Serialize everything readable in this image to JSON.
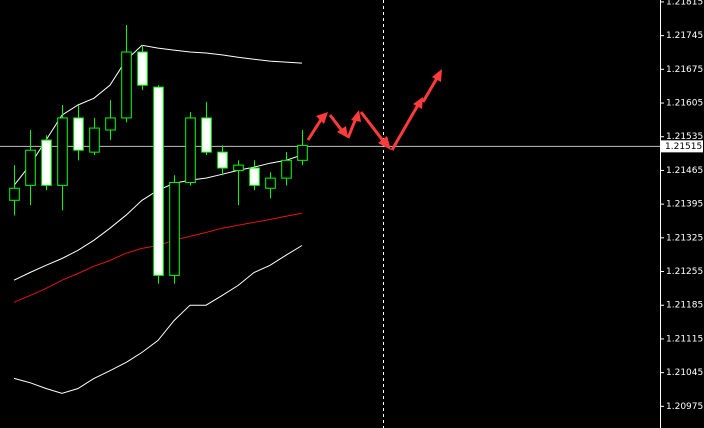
{
  "chart_data": {
    "type": "candlestick",
    "categories": [
      null,
      null,
      null,
      null,
      null,
      null,
      null,
      null,
      null,
      null,
      null,
      null,
      null,
      null,
      null,
      null,
      null,
      null,
      null
    ],
    "candles": {
      "border_color": "#00ff00",
      "up_color": "#000000",
      "down_color": "#ffffff",
      "open": [
        1.21403,
        1.21434,
        1.21528,
        1.21434,
        1.21574,
        1.21503,
        1.21549,
        1.21574,
        1.21711,
        1.21638,
        1.21247,
        1.2144,
        1.21574,
        1.21503,
        1.21465,
        1.2147,
        1.21428,
        1.21449,
        1.21486
      ],
      "high": [
        1.21476,
        1.21549,
        1.21538,
        1.21601,
        1.21601,
        1.21574,
        1.21611,
        1.21767,
        1.21725,
        1.21642,
        1.21455,
        1.21586,
        1.21607,
        1.21517,
        1.21486,
        1.21486,
        1.21461,
        1.21503,
        1.21549
      ],
      "low": [
        1.21372,
        1.21393,
        1.21424,
        1.21382,
        1.21486,
        1.21497,
        1.21528,
        1.21565,
        1.21632,
        1.2123,
        1.2123,
        1.21434,
        1.21497,
        1.21455,
        1.21393,
        1.21424,
        1.21407,
        1.21434,
        1.21476
      ],
      "close": [
        1.21428,
        1.21507,
        1.21434,
        1.21574,
        1.21507,
        1.21553,
        1.21574,
        1.21711,
        1.21642,
        1.21247,
        1.2144,
        1.21574,
        1.21503,
        1.2147,
        1.21476,
        1.21434,
        1.21449,
        1.21486,
        1.21517
      ]
    },
    "series": [
      {
        "color": "#ffffff",
        "values": [
          1.21434,
          1.21476,
          1.21528,
          1.2158,
          1.21601,
          1.21615,
          1.21642,
          1.21694,
          1.21725,
          1.21719,
          1.21715,
          1.21711,
          1.21709,
          1.21705,
          1.217,
          1.21696,
          1.21692,
          1.2169,
          1.21688
        ]
      },
      {
        "color": "#ffffff",
        "values": [
          1.21237,
          1.21253,
          1.21268,
          1.21282,
          1.21299,
          1.2132,
          1.21345,
          1.21372,
          1.21403,
          1.21424,
          1.21438,
          1.21445,
          1.21449,
          1.21457,
          1.21465,
          1.21472,
          1.2148,
          1.21486,
          1.21497
        ]
      },
      {
        "color": "#e31414",
        "values": [
          1.21191,
          1.21205,
          1.2122,
          1.21237,
          1.21251,
          1.21266,
          1.21278,
          1.21293,
          1.21303,
          1.21309,
          1.2132,
          1.21328,
          1.21336,
          1.21345,
          1.21351,
          1.21357,
          1.21363,
          1.2137,
          1.21376
        ]
      },
      {
        "color": "#ffffff",
        "values": [
          1.21033,
          1.21024,
          1.21012,
          1.21002,
          1.21012,
          1.21033,
          1.21049,
          1.21066,
          1.21087,
          1.21112,
          1.21153,
          1.21185,
          1.21185,
          1.21205,
          1.21226,
          1.21253,
          1.21268,
          1.21289,
          1.21309
        ]
      }
    ],
    "current_price": 1.21515,
    "xlim": [
      -0.875,
      40.375
    ],
    "ylim": [
      1.2093,
      1.21819
    ],
    "yticks": [
      1.21815,
      1.21745,
      1.21675,
      1.21605,
      1.21535,
      1.21465,
      1.21395,
      1.21325,
      1.21255,
      1.21185,
      1.21115,
      1.21045,
      1.20975
    ]
  }
}
